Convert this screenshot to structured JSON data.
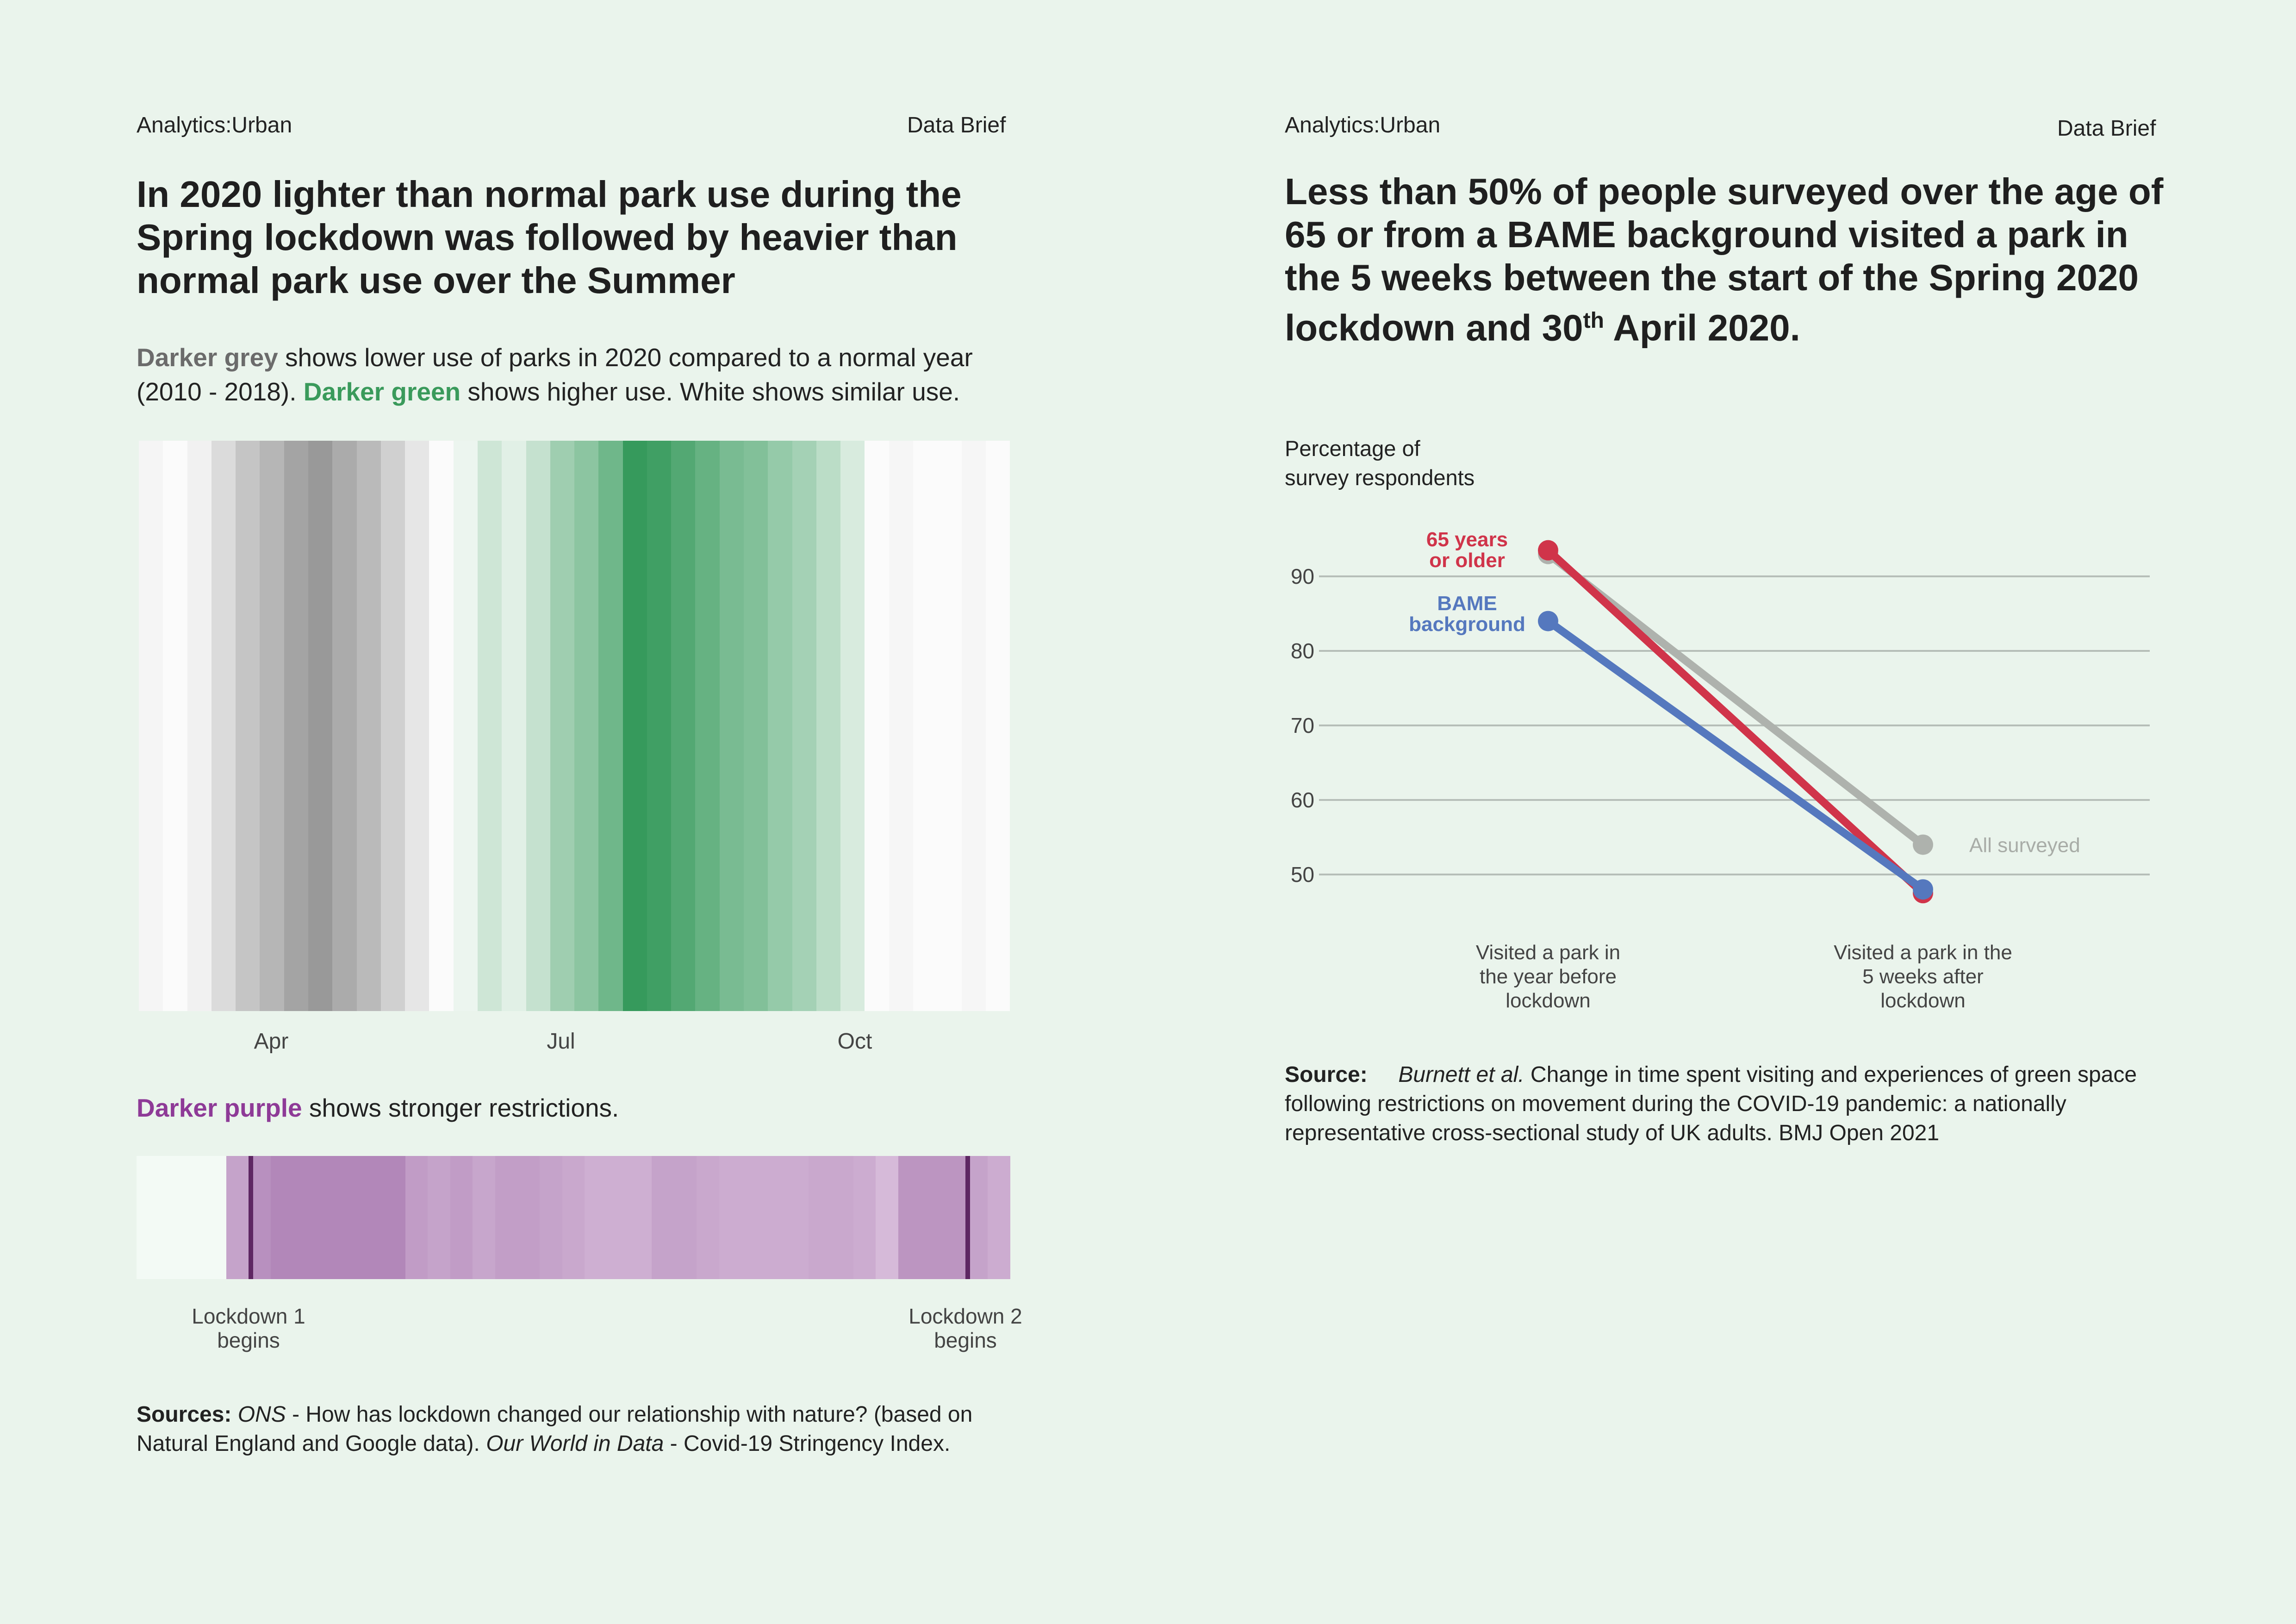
{
  "left": {
    "header_left": "Analytics:Urban",
    "header_right": "Data Brief",
    "title": "In 2020 lighter than normal park use during the Spring lockdown was followed by heavier than normal park use over the Summer",
    "subtitle": {
      "grey_label": "Darker grey",
      "part1": " shows lower use of parks in 2020 compared to a normal year (2010 - 2018).  ",
      "green_label": "Darker green",
      "part2": " shows higher use. White shows similar use."
    },
    "purple_caption": {
      "label": "Darker purple",
      "text": " shows stronger restrictions."
    },
    "lockdown1": [
      "Lockdown 1",
      "begins"
    ],
    "lockdown2": [
      "Lockdown 2",
      "begins"
    ],
    "sources": {
      "label": "Sources:",
      "ons": "ONS",
      "text1": " - How has lockdown changed our relationship with nature? (based on Natural England and Google data). ",
      "owid": "Our World in Data",
      "text2": " - Covid-19 Stringency Index."
    }
  },
  "right": {
    "header_left": "Analytics:Urban",
    "header_right": "Data Brief",
    "title_part1": "Less than 50% of people surveyed over the age of 65 or from a BAME background visited a park in the 5 weeks between the start of the Spring 2020 lockdown and 30",
    "title_sup": "th",
    "title_part2": " April 2020.",
    "sources": {
      "label": "Source:",
      "author": "Burnett et al.",
      "text": " Change in time spent visiting and experiences of green space following restrictions on movement during the COVID-19 pandemic: a nationally representative cross-sectional study of UK adults. BMJ Open 2021"
    }
  },
  "chart_data": [
    {
      "type": "heatmap",
      "description_colors": {
        "lower": "#8c8c8c",
        "higher": "#369a5c",
        "similar": "#ffffff"
      },
      "x_tick_labels": [
        "Apr",
        "Jul",
        "Oct"
      ],
      "weeks": [
        {
          "dir": "lower",
          "level": 0.05
        },
        {
          "dir": "similar",
          "level": 0
        },
        {
          "dir": "lower",
          "level": 0.08
        },
        {
          "dir": "lower",
          "level": 0.28
        },
        {
          "dir": "lower",
          "level": 0.48
        },
        {
          "dir": "lower",
          "level": 0.62
        },
        {
          "dir": "lower",
          "level": 0.78
        },
        {
          "dir": "lower",
          "level": 0.88
        },
        {
          "dir": "lower",
          "level": 0.72
        },
        {
          "dir": "lower",
          "level": 0.58
        },
        {
          "dir": "lower",
          "level": 0.38
        },
        {
          "dir": "lower",
          "level": 0.18
        },
        {
          "dir": "similar",
          "level": 0
        },
        {
          "dir": "higher",
          "level": 0.04
        },
        {
          "dir": "higher",
          "level": 0.2
        },
        {
          "dir": "higher",
          "level": 0.1
        },
        {
          "dir": "higher",
          "level": 0.25
        },
        {
          "dir": "higher",
          "level": 0.45
        },
        {
          "dir": "higher",
          "level": 0.55
        },
        {
          "dir": "higher",
          "level": 0.7
        },
        {
          "dir": "higher",
          "level": 1.0
        },
        {
          "dir": "higher",
          "level": 0.95
        },
        {
          "dir": "higher",
          "level": 0.85
        },
        {
          "dir": "higher",
          "level": 0.75
        },
        {
          "dir": "higher",
          "level": 0.65
        },
        {
          "dir": "higher",
          "level": 0.6
        },
        {
          "dir": "higher",
          "level": 0.5
        },
        {
          "dir": "higher",
          "level": 0.42
        },
        {
          "dir": "higher",
          "level": 0.3
        },
        {
          "dir": "higher",
          "level": 0.15
        },
        {
          "dir": "similar",
          "level": 0
        },
        {
          "dir": "lower",
          "level": 0.04
        },
        {
          "dir": "similar",
          "level": 0
        },
        {
          "dir": "similar",
          "level": 0
        },
        {
          "dir": "lower",
          "level": 0.04
        },
        {
          "dir": "similar",
          "level": 0
        }
      ]
    },
    {
      "type": "heatmap",
      "description_color": "#a879b0",
      "lockdown_markers": [
        "Lockdown 1",
        "Lockdown 2"
      ],
      "weeks": [
        {
          "level": 0.0
        },
        {
          "level": 0.0
        },
        {
          "level": 0.0
        },
        {
          "level": 0.0
        },
        {
          "level": 0.55
        },
        {
          "level": 0.75
        },
        {
          "level": 0.85
        },
        {
          "level": 0.85
        },
        {
          "level": 0.85
        },
        {
          "level": 0.85
        },
        {
          "level": 0.85
        },
        {
          "level": 0.85
        },
        {
          "level": 0.62
        },
        {
          "level": 0.55
        },
        {
          "level": 0.62
        },
        {
          "level": 0.52
        },
        {
          "level": 0.6
        },
        {
          "level": 0.6
        },
        {
          "level": 0.55
        },
        {
          "level": 0.5
        },
        {
          "level": 0.42
        },
        {
          "level": 0.42
        },
        {
          "level": 0.42
        },
        {
          "level": 0.55
        },
        {
          "level": 0.55
        },
        {
          "level": 0.5
        },
        {
          "level": 0.45
        },
        {
          "level": 0.45
        },
        {
          "level": 0.45
        },
        {
          "level": 0.45
        },
        {
          "level": 0.5
        },
        {
          "level": 0.5
        },
        {
          "level": 0.45
        },
        {
          "level": 0.3
        },
        {
          "level": 0.7
        },
        {
          "level": 0.7
        },
        {
          "level": 0.7
        },
        {
          "level": 0.55
        },
        {
          "level": 0.45
        }
      ],
      "marker_weeks": [
        5,
        37
      ]
    },
    {
      "type": "line",
      "ylabel": "Percentage of survey respondents",
      "yticks": [
        50,
        60,
        70,
        80,
        90
      ],
      "ylim": [
        44,
        96
      ],
      "categories": [
        "Visited a park in the year before lockdown",
        "Visited a park in the 5 weeks after lockdown"
      ],
      "series": [
        {
          "name": "All surveyed",
          "values": [
            93,
            54
          ],
          "color": "#aeb2ad"
        },
        {
          "name": "65 years or older",
          "values": [
            93.5,
            47.5
          ],
          "color": "#d0344a"
        },
        {
          "name": "BAME background",
          "values": [
            84,
            48
          ],
          "color": "#5578be"
        }
      ]
    }
  ]
}
